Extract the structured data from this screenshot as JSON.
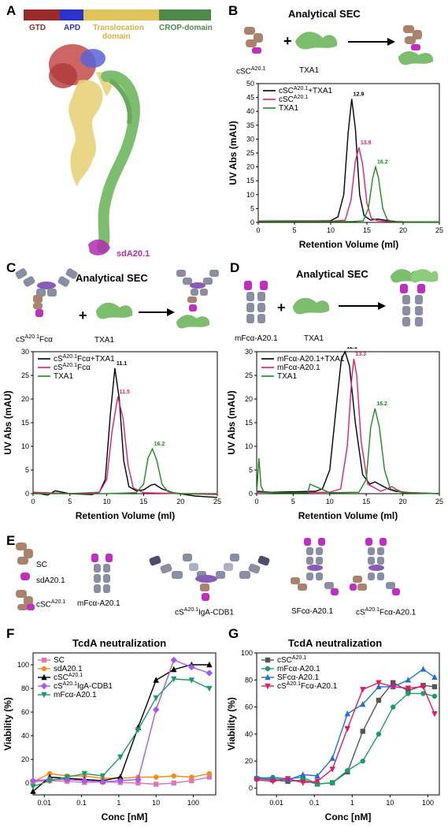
{
  "panels": {
    "A": {
      "label": "A",
      "domains": [
        {
          "name": "GTD",
          "color": "#9b2b2b"
        },
        {
          "name": "APD",
          "color": "#2b33c9"
        },
        {
          "name": "Translocation domain",
          "color": "#e0c35a"
        },
        {
          "name": "CROP-domain",
          "color": "#4f8a4a"
        }
      ],
      "label_lines": [
        "Translocation",
        "domain"
      ],
      "binder_label": "sdA20.1"
    },
    "B": {
      "label": "B",
      "title": "Analytical SEC",
      "plus": "+",
      "cartoon_labels": {
        "left": "cSC",
        "left_sup": "A20.1",
        "right": "TXA1"
      }
    },
    "C": {
      "label": "C",
      "title": "Analytical SEC",
      "plus": "+",
      "cartoon_labels": {
        "left": "cS",
        "left_sup": "A20.1",
        "left_suffix": "Fcα",
        "right": "TXA1"
      }
    },
    "D": {
      "label": "D",
      "title": "Analytical SEC",
      "plus": "+",
      "cartoon_labels": {
        "left": "mFcα-A20.1",
        "right": "TXA1"
      }
    },
    "E": {
      "label": "E",
      "items": [
        {
          "text": "SC"
        },
        {
          "text": "sdA20.1"
        },
        {
          "text": "cSC",
          "sup": "A20.1"
        },
        {
          "text": "mFcα-A20.1"
        },
        {
          "text": "cS",
          "sup": "A20.1",
          "suffix": "IgA-CDB1"
        },
        {
          "text": "SFcα-A20.1"
        },
        {
          "text": "cS",
          "sup": "A20.1",
          "suffix": "Fcα-A20.1"
        }
      ]
    },
    "F": {
      "label": "F",
      "title": "TcdA neutralization"
    },
    "G": {
      "label": "G",
      "title": "TcdA neutralization"
    }
  },
  "chart_data": [
    {
      "panel": "B",
      "type": "line",
      "xlabel": "Retention Volume (ml)",
      "ylabel": "UV Abs (mAU)",
      "xlim": [
        0,
        25
      ],
      "ylim": [
        0,
        50
      ],
      "xticks": [
        0,
        5,
        10,
        15,
        20,
        25
      ],
      "yticks": [
        0,
        5,
        10,
        15,
        20,
        25,
        30,
        35,
        40,
        45,
        50
      ],
      "legend_position": "top-left",
      "series": [
        {
          "name": "cSC",
          "name_sup": "A20.1",
          "name_suffix": "+TXA1",
          "color": "#000000",
          "peak_label": "12.9",
          "x": [
            0,
            1,
            3,
            5,
            8,
            10,
            11,
            11.8,
            12.4,
            12.9,
            13.4,
            14.0,
            14.6,
            15.5,
            16.5,
            17.5,
            19,
            22,
            25
          ],
          "y": [
            0.5,
            0.5,
            0.5,
            0.5,
            0.5,
            0.6,
            2,
            10,
            32,
            44.5,
            34,
            10,
            2.5,
            0.8,
            1.2,
            0.8,
            0.3,
            0.1,
            0.1
          ]
        },
        {
          "name": "cSC",
          "name_sup": "A20.1",
          "color": "#e0206f",
          "peak_label": "13.9",
          "x": [
            0,
            5,
            10,
            12,
            12.8,
            13.4,
            13.9,
            14.4,
            15.0,
            15.6,
            16.5,
            18,
            22,
            25
          ],
          "y": [
            0.5,
            0.4,
            0.4,
            0.8,
            8,
            22,
            27,
            21,
            7,
            1.5,
            0.6,
            0.3,
            0.2,
            0.2
          ]
        },
        {
          "name": "TXA1",
          "color": "#1e8a1e",
          "peak_label": "16.2",
          "x": [
            0,
            5,
            10,
            13,
            14.5,
            15.2,
            15.8,
            16.2,
            16.6,
            17.2,
            17.8,
            18.5,
            20,
            25
          ],
          "y": [
            0.3,
            0.3,
            0.3,
            0.3,
            0.6,
            5,
            16,
            20,
            16,
            5,
            1,
            0.3,
            0.2,
            0.2
          ]
        }
      ]
    },
    {
      "panel": "C",
      "type": "line",
      "xlabel": "Retention Volume (ml)",
      "ylabel": "UV Abs (mAU)",
      "xlim": [
        0,
        25
      ],
      "ylim": [
        0,
        30
      ],
      "xticks": [
        0,
        5,
        10,
        15,
        20,
        25
      ],
      "yticks": [
        0,
        5,
        10,
        15,
        20,
        25,
        30
      ],
      "legend_position": "top-left",
      "series": [
        {
          "name": "cS",
          "name_sup": "A20.1",
          "name_suffix": "Fcα+TXA1",
          "color": "#000000",
          "peak_label": "11.1",
          "x": [
            0,
            2,
            3,
            5,
            8,
            9,
            9.8,
            10.5,
            11.1,
            11.7,
            12.3,
            13,
            14,
            15,
            16,
            16.5,
            17.5,
            19,
            22,
            25
          ],
          "y": [
            0.2,
            -0.3,
            0.6,
            0,
            -0.2,
            0.3,
            3,
            17,
            26.5,
            20,
            7,
            1.5,
            0.6,
            0.8,
            1.8,
            2,
            1,
            0.2,
            -0.5,
            -0.8
          ]
        },
        {
          "name": "cS",
          "name_sup": "A20.1",
          "name_suffix": "Fcα",
          "color": "#e0206f",
          "peak_label": "11.5",
          "x": [
            0,
            5,
            9,
            10,
            10.7,
            11.5,
            12.2,
            12.9,
            13.6,
            15,
            20,
            25
          ],
          "y": [
            0.3,
            0,
            0.3,
            3,
            13,
            20.5,
            16,
            6,
            1.2,
            0.2,
            0,
            -0.2
          ]
        },
        {
          "name": "TXA1",
          "color": "#1e8a1e",
          "peak_label": "16.2",
          "x": [
            0,
            5,
            10,
            14,
            15,
            15.6,
            16.2,
            16.8,
            17.5,
            18.3,
            20,
            25
          ],
          "y": [
            0,
            0,
            0,
            0.2,
            2,
            7.5,
            9.5,
            7,
            2,
            0.4,
            0,
            0
          ]
        }
      ]
    },
    {
      "panel": "D",
      "type": "line",
      "xlabel": "Retention Volume (ml)",
      "ylabel": "UV Abs (mAU)",
      "xlim": [
        0,
        25
      ],
      "ylim": [
        0,
        30
      ],
      "xticks": [
        0,
        5,
        10,
        15,
        20,
        25
      ],
      "yticks": [
        0,
        5,
        10,
        15,
        20,
        25,
        30
      ],
      "legend_position": "top-left",
      "series": [
        {
          "name": "mFcα-A20.1+TXA1",
          "color": "#000000",
          "peak_label": "12.1",
          "x": [
            0,
            2,
            5,
            8,
            9,
            10,
            11,
            11.6,
            12.1,
            12.7,
            13.5,
            14.5,
            15.5,
            16.2,
            17,
            18,
            19,
            21,
            25
          ],
          "y": [
            0.5,
            0.3,
            0.4,
            0.5,
            1,
            5,
            20,
            28.5,
            30,
            27,
            15,
            4,
            2,
            2.5,
            1.8,
            1,
            0.5,
            0.2,
            0
          ]
        },
        {
          "name": "mFcα-A20.1",
          "color": "#e0206f",
          "peak_label": "13.3",
          "x": [
            0,
            5,
            10,
            11.5,
            12.4,
            13.0,
            13.3,
            13.7,
            14.3,
            15.2,
            17,
            18.5,
            19.2,
            20,
            25
          ],
          "y": [
            0.3,
            0.2,
            0.3,
            1,
            10,
            24,
            28.5,
            25,
            11,
            2,
            0.5,
            1.5,
            0.8,
            0.3,
            0
          ]
        },
        {
          "name": "TXA1",
          "color": "#1e8a1e",
          "peak_label": "16.2",
          "x": [
            0,
            0.3,
            0.6,
            1,
            2.5,
            5,
            7,
            7.3,
            10,
            14,
            15,
            15.6,
            16.2,
            16.8,
            17.5,
            18.3,
            20,
            25
          ],
          "y": [
            0,
            7.5,
            1.5,
            0.3,
            0.2,
            0.2,
            0.2,
            2,
            0.2,
            0.3,
            3,
            14,
            18,
            14,
            5,
            1,
            0.2,
            0
          ]
        }
      ]
    },
    {
      "panel": "F",
      "type": "line",
      "title": "TcdA neutralization",
      "xlabel": "Conc [nM]",
      "ylabel": "Viability (%)",
      "xscale": "log",
      "xlim": [
        0.005,
        400
      ],
      "ylim": [
        -10,
        110
      ],
      "xticks": [
        0.01,
        0.1,
        1,
        10,
        100
      ],
      "xtick_labels": [
        "0.01",
        "0.1",
        "1",
        "10",
        "100"
      ],
      "yticks": [
        0,
        20,
        40,
        60,
        80,
        100
      ],
      "legend_position": "top-left",
      "x": [
        0.005,
        0.014,
        0.041,
        0.12,
        0.37,
        1.1,
        3.3,
        10,
        30,
        90,
        270
      ],
      "series": [
        {
          "name": "SC",
          "color": "#d77ab5",
          "marker": "square",
          "y": [
            1,
            2,
            1.5,
            0.5,
            1,
            0.5,
            0,
            -1,
            0,
            2,
            5
          ]
        },
        {
          "name": "sdA20.1",
          "color": "#f08c1c",
          "marker": "circle",
          "y": [
            1,
            8,
            6,
            6,
            4,
            4,
            5,
            5,
            6,
            5,
            8
          ]
        },
        {
          "name": "cSC",
          "name_sup": "A20.1",
          "color": "#000000",
          "marker": "triangle-up",
          "y": [
            -7,
            5,
            4,
            3,
            2,
            5,
            47,
            87,
            96,
            100,
            100
          ]
        },
        {
          "name": "cS",
          "name_sup": "A20.1",
          "name_suffix": "IgA-CDB1",
          "color": "#a657f0",
          "marker": "diamond",
          "y": [
            2,
            3,
            3,
            2,
            1,
            2,
            3,
            62,
            104,
            98,
            93
          ]
        },
        {
          "name": "mFcα-A20.1",
          "color": "#1f9a6a",
          "marker": "triangle-down",
          "y": [
            -3,
            2,
            5,
            8,
            6,
            22,
            45,
            72,
            88,
            87,
            80
          ]
        }
      ]
    },
    {
      "panel": "G",
      "type": "line",
      "title": "TcdA neutralization",
      "xlabel": "Conc [nM]",
      "ylabel": "Viability (%)",
      "xscale": "log",
      "xlim": [
        0.003,
        200
      ],
      "ylim": [
        -5,
        100
      ],
      "xticks": [
        0.01,
        0.1,
        1,
        10,
        100
      ],
      "xtick_labels": [
        "0.01",
        "0.1",
        "1",
        "10",
        "100"
      ],
      "yticks": [
        0,
        20,
        40,
        60,
        80,
        100
      ],
      "legend_position": "top-left",
      "x": [
        0.003,
        0.008,
        0.02,
        0.05,
        0.12,
        0.3,
        0.75,
        1.9,
        5,
        12,
        30,
        75,
        150
      ],
      "series": [
        {
          "name": "cSC",
          "name_sup": "A20.1",
          "color": "#555555",
          "marker": "square",
          "y": [
            7,
            6,
            5,
            6,
            3,
            4,
            12,
            42,
            65,
            78,
            72,
            76,
            75
          ]
        },
        {
          "name": "mFcα-A20.1",
          "color": "#1f9a6a",
          "marker": "circle",
          "y": [
            7,
            8,
            7,
            8,
            3,
            4,
            13,
            20,
            40,
            60,
            70,
            70,
            68
          ]
        },
        {
          "name": "SFcα-A20.1",
          "color": "#1f70d9",
          "marker": "triangle-up",
          "y": [
            8,
            7,
            6,
            10,
            9,
            22,
            55,
            62,
            75,
            75,
            80,
            88,
            82
          ]
        },
        {
          "name": "cS",
          "name_sup": "A20.1",
          "name_suffix": "Fcα-A20.1",
          "color": "#e21a6a",
          "marker": "triangle-down",
          "y": [
            6,
            5,
            7,
            4,
            5,
            14,
            44,
            73,
            78,
            75,
            74,
            75,
            55
          ]
        }
      ]
    }
  ]
}
